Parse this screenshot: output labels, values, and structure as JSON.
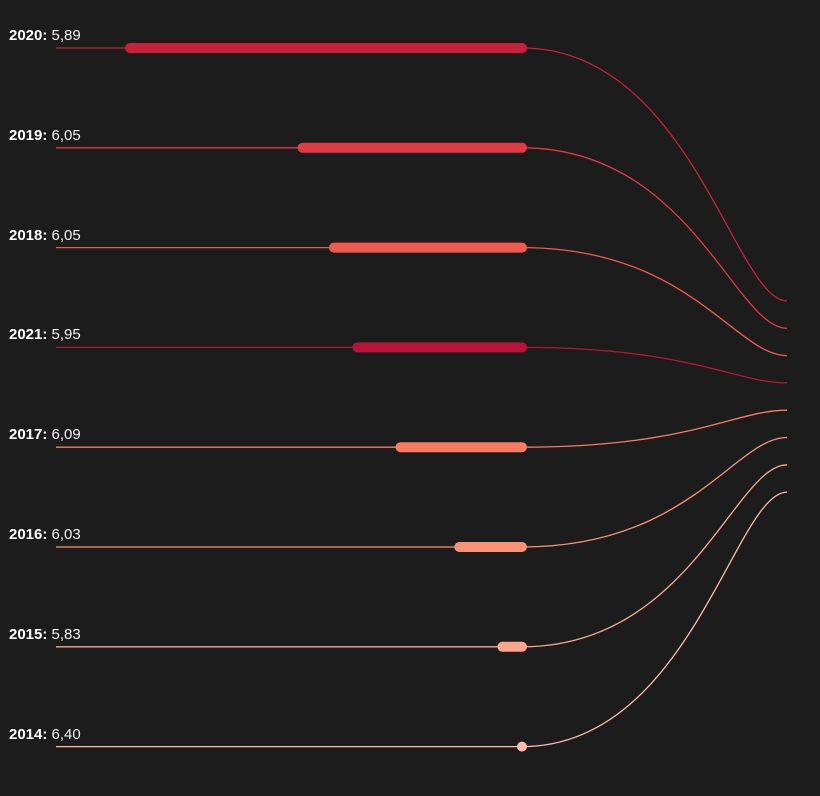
{
  "chart_data": {
    "type": "bar",
    "series_order_top_to_bottom": [
      "2020",
      "2019",
      "2018",
      "2021",
      "2017",
      "2016",
      "2015",
      "2014"
    ],
    "rows": [
      {
        "year": "2020:",
        "label": "5,89",
        "value": 5.89,
        "bar_length": 1.0,
        "color": "#c8203a"
      },
      {
        "year": "2019:",
        "label": "6,05",
        "value": 6.05,
        "bar_length": 0.56,
        "color": "#e03a44"
      },
      {
        "year": "2018:",
        "label": "6,05",
        "value": 6.05,
        "bar_length": 0.48,
        "color": "#f05a4e"
      },
      {
        "year": "2021:",
        "label": "5,95",
        "value": 5.95,
        "bar_length": 0.42,
        "color": "#b8143a"
      },
      {
        "year": "2017:",
        "label": "6,09",
        "value": 6.09,
        "bar_length": 0.31,
        "color": "#f87c62"
      },
      {
        "year": "2016:",
        "label": "6,03",
        "value": 6.03,
        "bar_length": 0.16,
        "color": "#fa9276"
      },
      {
        "year": "2015:",
        "label": "5,83",
        "value": 5.83,
        "bar_length": 0.05,
        "color": "#fca68e"
      },
      {
        "year": "2014:",
        "label": "6,40",
        "value": 6.4,
        "bar_length": 0.0,
        "color": "#fdbca8"
      }
    ],
    "grid": false,
    "legend": "none"
  }
}
